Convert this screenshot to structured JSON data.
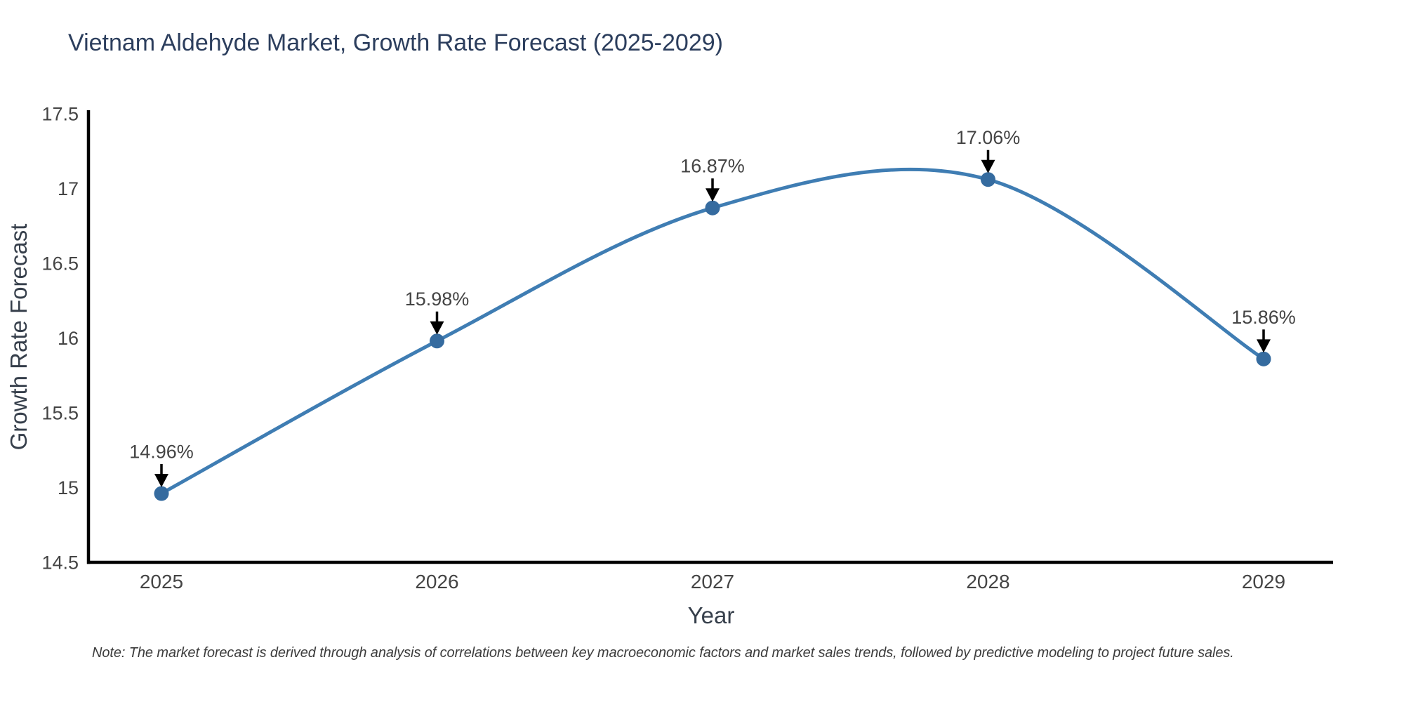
{
  "title": "Vietnam Aldehyde Market, Growth Rate Forecast (2025-2029)",
  "note": "Note: The market forecast is derived through analysis of correlations between key macroeconomic factors and market sales trends, followed by predictive modeling to project future sales.",
  "chart_data": {
    "type": "line",
    "title": "Vietnam Aldehyde Market, Growth Rate Forecast (2025-2029)",
    "xlabel": "Year",
    "ylabel": "Growth Rate Forecast",
    "line_shape": "spline",
    "grid": false,
    "legend_position": "none",
    "x": [
      2025,
      2026,
      2027,
      2028,
      2029
    ],
    "values": [
      14.96,
      15.98,
      16.87,
      17.06,
      15.86
    ],
    "point_labels": [
      "14.96%",
      "15.98%",
      "16.87%",
      "17.06%",
      "15.86%"
    ],
    "x_tick_labels": [
      "2025",
      "2026",
      "2027",
      "2028",
      "2029"
    ],
    "y_ticks": [
      14.5,
      15,
      15.5,
      16,
      16.5,
      17,
      17.5
    ],
    "y_tick_labels": [
      "14.5",
      "15",
      "15.5",
      "16",
      "16.5",
      "17",
      "17.5"
    ],
    "ylim": [
      14.5,
      17.5
    ],
    "colors": {
      "line": "#3f7db3",
      "marker": "#356b9f",
      "axis_line": "#000000",
      "tick_text": "#444444",
      "annotation_text": "#444444",
      "arrow": "#000000",
      "title_text": "#2c3e5d",
      "axis_title_text": "#363f4b",
      "note_text": "#3c3c3c",
      "background": "#ffffff"
    }
  }
}
